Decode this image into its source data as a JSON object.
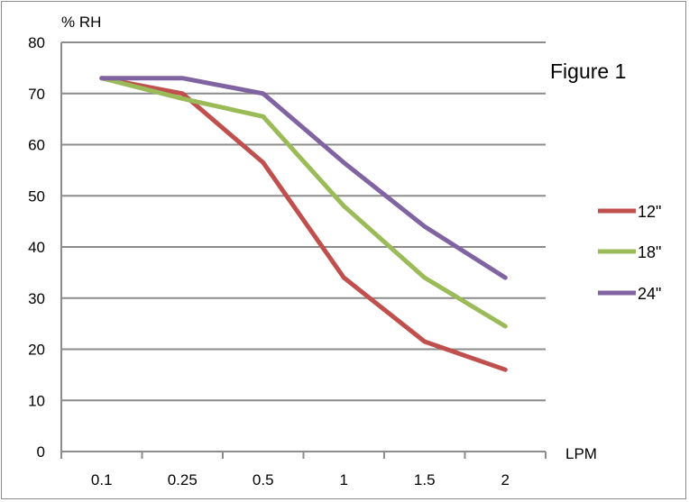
{
  "chart_data": {
    "type": "line",
    "title": "Figure 1",
    "ylabel": "% RH",
    "xlabel": "LPM",
    "categories": [
      "0.1",
      "0.25",
      "0.5",
      "1",
      "1.5",
      "2"
    ],
    "ylim": [
      0,
      80
    ],
    "yticks": [
      0,
      10,
      20,
      30,
      40,
      50,
      60,
      70,
      80
    ],
    "grid": true,
    "legend_position": "right",
    "series": [
      {
        "name": "12\"",
        "color": "#c0504d",
        "values": [
          73,
          70,
          56.5,
          34,
          21.5,
          16
        ]
      },
      {
        "name": "18\"",
        "color": "#9bbb59",
        "values": [
          73,
          69,
          65.5,
          48,
          34,
          24.5
        ]
      },
      {
        "name": "24\"",
        "color": "#8064a2",
        "values": [
          73,
          73,
          70,
          56.5,
          44,
          34
        ]
      }
    ]
  }
}
